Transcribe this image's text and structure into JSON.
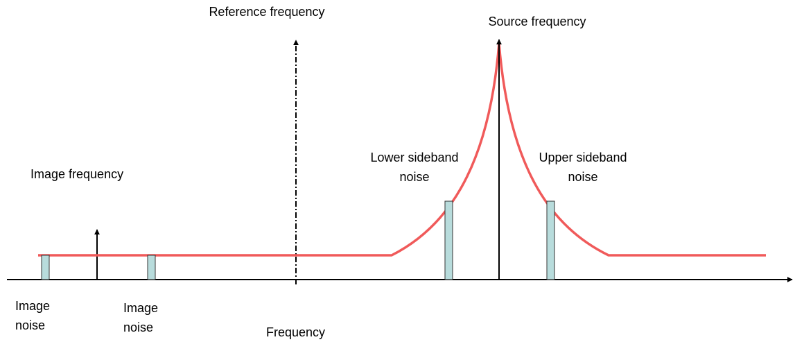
{
  "labels": {
    "reference_frequency": "Reference frequency",
    "source_frequency": "Source frequency",
    "image_frequency": "Image frequency",
    "lower_sideband_noise": [
      "Lower sideband",
      "noise"
    ],
    "upper_sideband_noise": [
      "Upper sideband",
      "noise"
    ],
    "image_noise_left": [
      "Image",
      "noise"
    ],
    "image_noise_right": [
      "Image",
      "noise"
    ],
    "axis_label": "Frequency"
  }
}
